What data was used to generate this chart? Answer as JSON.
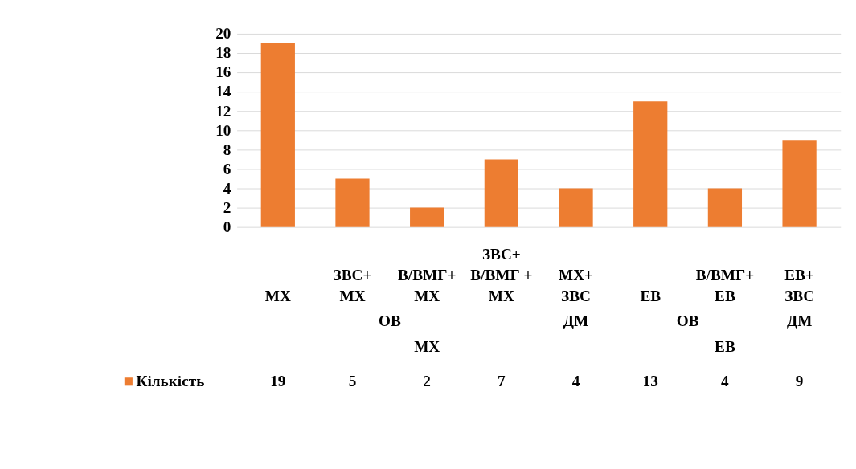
{
  "chart_data": {
    "type": "bar",
    "categories": [
      "МХ",
      "ЗВС+\nМХ",
      "В/ВМГ+\nМХ",
      "ЗВС+\nВ/ВМГ +\nМХ",
      "МХ+\nЗВС",
      "ЕВ",
      "В/ВМГ+\nЕВ",
      "ЕВ+\nЗВС"
    ],
    "series": [
      {
        "name": "Кількість",
        "color": "#ed7d31",
        "values": [
          19,
          5,
          2,
          7,
          4,
          13,
          4,
          9
        ]
      }
    ],
    "ylim": [
      0,
      20
    ],
    "yticks": [
      0,
      2,
      4,
      6,
      8,
      10,
      12,
      14,
      16,
      18,
      20
    ],
    "grid": "y",
    "data_labels": true,
    "legend": "bottom",
    "annotations": [
      "ОВ",
      "ДМ",
      "ОВ",
      "ДМ",
      "МХ",
      "ЕВ"
    ]
  }
}
